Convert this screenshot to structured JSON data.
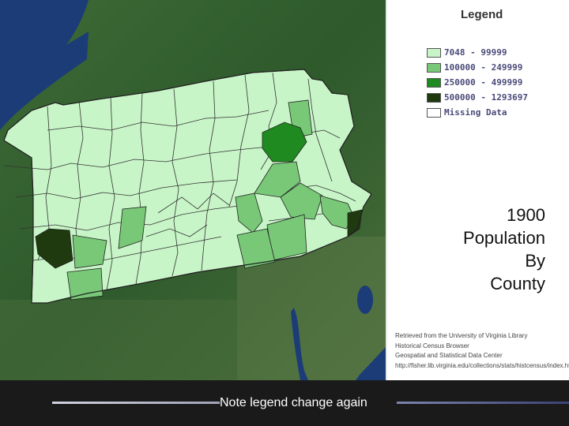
{
  "legend": {
    "title": "Legend",
    "items": [
      {
        "label": "7048 - 99999",
        "color": "#c8f5c8"
      },
      {
        "label": "100000 - 249999",
        "color": "#78c878"
      },
      {
        "label": "250000 - 499999",
        "color": "#1f8a1f"
      },
      {
        "label": "500000 - 1293697",
        "color": "#1e3a0e"
      },
      {
        "label": "Missing Data",
        "color": "#ffffff"
      }
    ]
  },
  "title_lines": [
    "1900",
    "Population",
    "By",
    "County"
  ],
  "credits": [
    "Retrieved from the University of Virginia Library",
    "Historical Census Browser",
    "Geospatial and Statistical Data Center",
    "http://fisher.lib.virginia.edu/collections/stats/histcensus/index.html"
  ],
  "caption": "Note legend change again",
  "colors": {
    "light": "#c8f5c8",
    "medium": "#78c878",
    "dark": "#1f8a1f",
    "darkest": "#1e3a0e",
    "satellite": "#2f5a2a",
    "water": "#1c3c78"
  }
}
